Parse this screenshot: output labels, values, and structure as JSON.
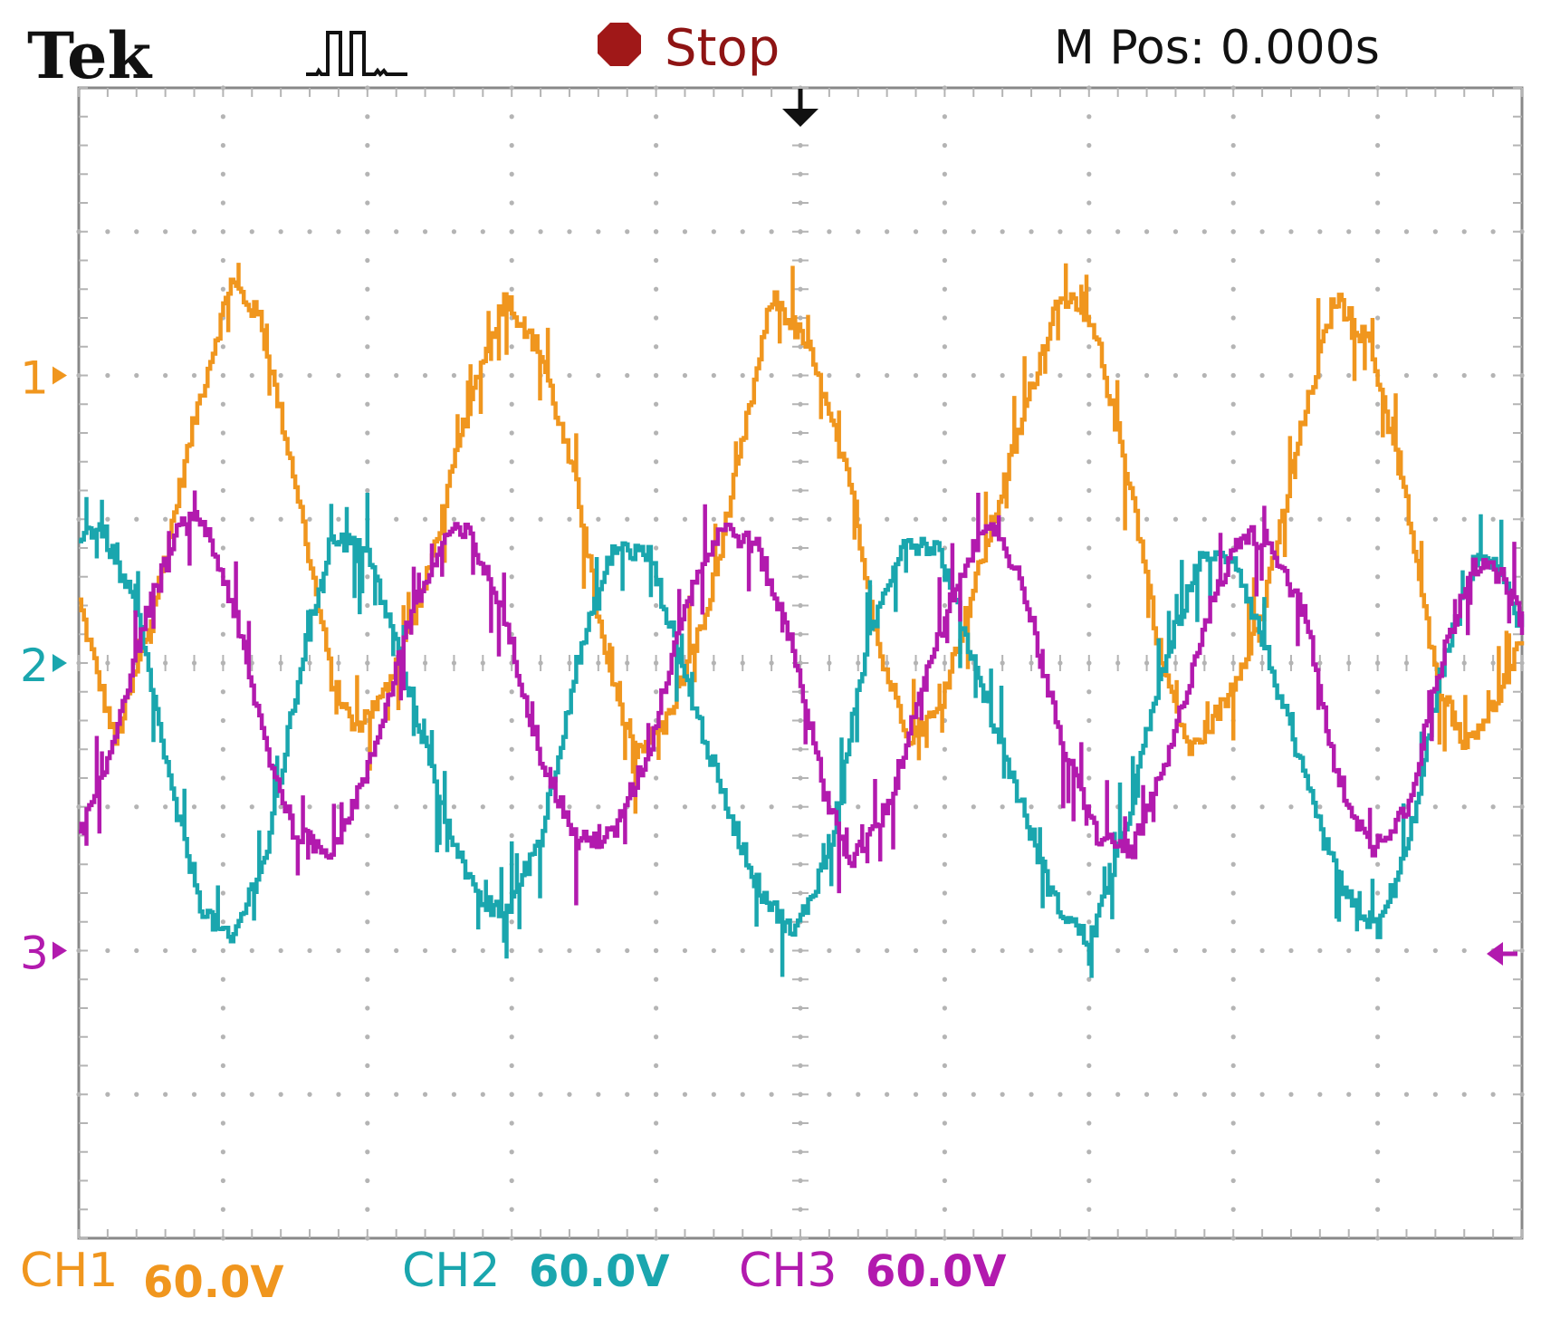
{
  "header": {
    "brand": "Tek",
    "trigger_icon": "trigger-pulse-icon",
    "stop_icon": "stop-octagon-icon",
    "status": "Stop",
    "position": "M Pos: 0.000s"
  },
  "colors": {
    "ch1": "#F0961E",
    "ch2": "#1AA6AE",
    "ch3": "#B21AAE",
    "grid": "#B4B4B4",
    "stop": "#A01818",
    "text": "#111111"
  },
  "chart_data": {
    "type": "line",
    "title": "",
    "xlabel": "",
    "ylabel": "",
    "x_divisions": 10,
    "y_divisions": 8,
    "xlim": [
      0,
      10
    ],
    "ylim": [
      -4,
      4
    ],
    "grid": true,
    "series": [
      {
        "marker": "1",
        "scale": "60.0V",
        "label": "CH1",
        "ground_div": 2,
        "points": [
          [
            0,
            0.42
          ],
          [
            0.1,
            0.02
          ],
          [
            0.25,
            -0.55
          ],
          [
            0.5,
            0.3
          ],
          [
            0.8,
            1.7
          ],
          [
            1.05,
            2.65
          ],
          [
            1.25,
            2.4
          ],
          [
            1.5,
            1.25
          ],
          [
            1.75,
            -0.12
          ],
          [
            1.9,
            -0.45
          ],
          [
            2.1,
            -0.25
          ],
          [
            2.4,
            0.55
          ],
          [
            2.7,
            1.8
          ],
          [
            2.95,
            2.55
          ],
          [
            3.2,
            2.15
          ],
          [
            3.45,
            1.2
          ],
          [
            3.65,
            0.0
          ],
          [
            3.85,
            -0.6
          ],
          [
            4.05,
            -0.45
          ],
          [
            4.35,
            0.35
          ],
          [
            4.6,
            1.55
          ],
          [
            4.8,
            2.55
          ],
          [
            5.05,
            2.2
          ],
          [
            5.35,
            1.2
          ],
          [
            5.55,
            0.05
          ],
          [
            5.75,
            -0.5
          ],
          [
            5.95,
            -0.35
          ],
          [
            6.25,
            0.7
          ],
          [
            6.55,
            1.75
          ],
          [
            6.8,
            2.6
          ],
          [
            7.05,
            2.25
          ],
          [
            7.3,
            1.15
          ],
          [
            7.5,
            0.0
          ],
          [
            7.7,
            -0.62
          ],
          [
            7.95,
            -0.25
          ],
          [
            8.2,
            0.35
          ],
          [
            8.45,
            1.55
          ],
          [
            8.7,
            2.55
          ],
          [
            8.95,
            2.2
          ],
          [
            9.2,
            1.1
          ],
          [
            9.4,
            -0.1
          ],
          [
            9.6,
            -0.55
          ],
          [
            9.8,
            -0.3
          ],
          [
            10,
            0.15
          ]
        ]
      },
      {
        "marker": "2",
        "scale": "60.0V",
        "label": "CH2",
        "ground_div": 0,
        "points": [
          [
            0,
            0.9
          ],
          [
            0.15,
            0.95
          ],
          [
            0.4,
            0.35
          ],
          [
            0.65,
            -0.95
          ],
          [
            0.85,
            -1.7
          ],
          [
            1.05,
            -1.95
          ],
          [
            1.3,
            -1.3
          ],
          [
            1.55,
            0.05
          ],
          [
            1.75,
            0.9
          ],
          [
            2.0,
            0.75
          ],
          [
            2.25,
            -0.05
          ],
          [
            2.5,
            -0.95
          ],
          [
            2.75,
            -1.65
          ],
          [
            2.95,
            -1.75
          ],
          [
            3.2,
            -1.2
          ],
          [
            3.45,
            0.0
          ],
          [
            3.7,
            0.8
          ],
          [
            3.95,
            0.75
          ],
          [
            4.2,
            -0.1
          ],
          [
            4.45,
            -0.9
          ],
          [
            4.7,
            -1.55
          ],
          [
            4.95,
            -1.9
          ],
          [
            5.2,
            -1.3
          ],
          [
            5.45,
            0.1
          ],
          [
            5.7,
            0.85
          ],
          [
            5.95,
            0.8
          ],
          [
            6.2,
            0.0
          ],
          [
            6.45,
            -0.75
          ],
          [
            6.75,
            -1.65
          ],
          [
            7.0,
            -1.95
          ],
          [
            7.25,
            -1.15
          ],
          [
            7.5,
            -0.05
          ],
          [
            7.75,
            0.7
          ],
          [
            8.0,
            0.75
          ],
          [
            8.25,
            0.0
          ],
          [
            8.5,
            -0.85
          ],
          [
            8.75,
            -1.6
          ],
          [
            9.0,
            -1.85
          ],
          [
            9.2,
            -1.3
          ],
          [
            9.45,
            0.0
          ],
          [
            9.7,
            0.8
          ],
          [
            9.9,
            0.55
          ],
          [
            10,
            0.2
          ]
        ]
      },
      {
        "marker": "3",
        "scale": "60.0V",
        "label": "CH3",
        "ground_div": -2,
        "points": [
          [
            0,
            -1.2
          ],
          [
            0.15,
            -0.85
          ],
          [
            0.45,
            0.3
          ],
          [
            0.7,
            0.95
          ],
          [
            0.85,
            1.0
          ],
          [
            1.05,
            0.45
          ],
          [
            1.3,
            -0.6
          ],
          [
            1.5,
            -1.2
          ],
          [
            1.75,
            -1.3
          ],
          [
            2.0,
            -0.75
          ],
          [
            2.3,
            0.35
          ],
          [
            2.55,
            0.9
          ],
          [
            2.7,
            0.9
          ],
          [
            2.95,
            0.3
          ],
          [
            3.2,
            -0.65
          ],
          [
            3.45,
            -1.25
          ],
          [
            3.7,
            -1.2
          ],
          [
            3.95,
            -0.6
          ],
          [
            4.2,
            0.45
          ],
          [
            4.45,
            0.95
          ],
          [
            4.7,
            0.8
          ],
          [
            4.95,
            0.1
          ],
          [
            5.15,
            -0.85
          ],
          [
            5.35,
            -1.4
          ],
          [
            5.6,
            -1.0
          ],
          [
            5.9,
            0.0
          ],
          [
            6.15,
            0.75
          ],
          [
            6.35,
            0.95
          ],
          [
            6.55,
            0.5
          ],
          [
            6.8,
            -0.55
          ],
          [
            7.05,
            -1.2
          ],
          [
            7.3,
            -1.3
          ],
          [
            7.55,
            -0.65
          ],
          [
            7.8,
            0.3
          ],
          [
            8.05,
            0.9
          ],
          [
            8.25,
            0.85
          ],
          [
            8.5,
            0.3
          ],
          [
            8.7,
            -0.75
          ],
          [
            8.95,
            -1.3
          ],
          [
            9.2,
            -1.0
          ],
          [
            9.45,
            0.05
          ],
          [
            9.65,
            0.7
          ],
          [
            9.85,
            0.6
          ],
          [
            10,
            0.3
          ]
        ]
      }
    ]
  }
}
